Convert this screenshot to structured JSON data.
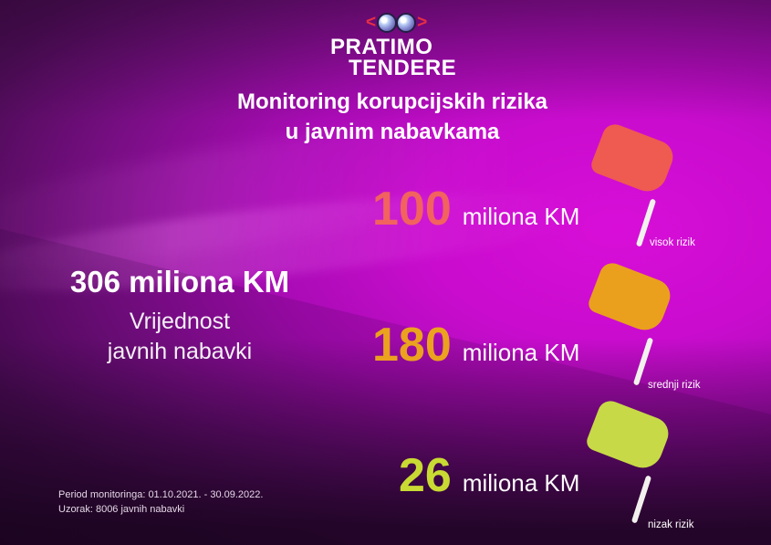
{
  "brand": {
    "bracket_left": "<",
    "bracket_right": ">",
    "line1": "PRATIMO",
    "line2": "TENDERE"
  },
  "title": {
    "line1": "Monitoring korupcijskih rizika",
    "line2": "u javnim nabavkama"
  },
  "summary": {
    "value": "306 miliona KM",
    "caption_line1": "Vrijednost",
    "caption_line2": "javnih nabavki"
  },
  "rows": [
    {
      "value": "100",
      "unit": "miliona KM",
      "risk_label": "visok rizik",
      "value_color": "#f2625f",
      "flag_color": "#ef5a51"
    },
    {
      "value": "180",
      "unit": "miliona KM",
      "risk_label": "srednji rizik",
      "value_color": "#eba21f",
      "flag_color": "#eaa01d"
    },
    {
      "value": "26",
      "unit": "miliona KM",
      "risk_label": "nizak rizik",
      "value_color": "#c9da33",
      "flag_color": "#c7d947"
    }
  ],
  "footer": {
    "line1": "Period monitoringa: 01.10.2021. - 30.09.2022.",
    "line2": "Uzorak: 8006 javnih nabavki"
  },
  "colors": {
    "background_magenta": "#d30ed3",
    "background_dark": "#2a0830",
    "text": "#ffffff",
    "bracket_accent": "#e62e44",
    "pole": "#f3f1ee"
  },
  "chart_data": {
    "type": "bar",
    "variant": "flag-pictogram-infographic",
    "title": "Monitoring korupcijskih rizika u javnim nabavkama",
    "categories": [
      "visok rizik",
      "srednji rizik",
      "nizak rizik"
    ],
    "values": [
      100,
      180,
      26
    ],
    "unit": "miliona KM",
    "total": {
      "label": "Vrijednost javnih nabavki",
      "value": 306,
      "unit": "miliona KM"
    },
    "series_colors": [
      "#ef5a51",
      "#eaa01d",
      "#c7d947"
    ],
    "legend_position": "right-of-values-as-flags",
    "notes": [
      "Period monitoringa: 01.10.2021. - 30.09.2022.",
      "Uzorak: 8006 javnih nabavki"
    ]
  }
}
